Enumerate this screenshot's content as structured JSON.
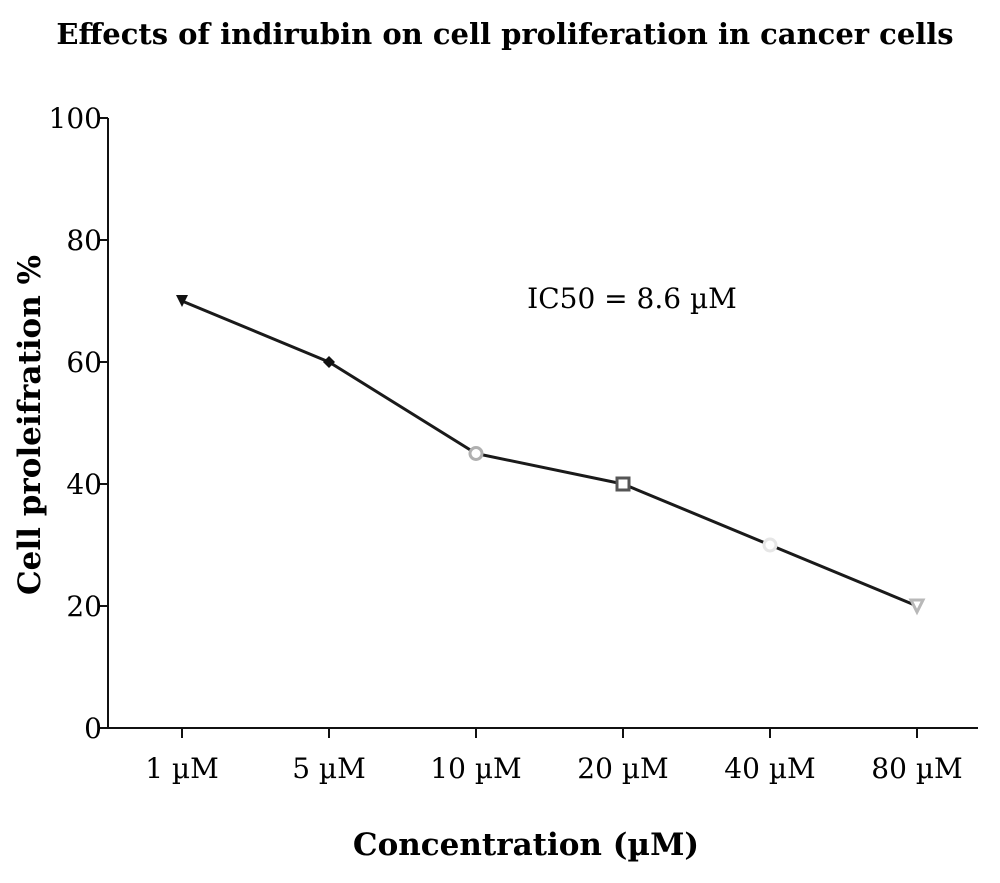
{
  "chart_data": {
    "type": "line",
    "title": "Effects of indirubin on cell proliferation in cancer cells",
    "xlabel": "Concentration (µM)",
    "ylabel": "Cell proleifration %",
    "categories": [
      "1 µM",
      "5 µM",
      "10 µM",
      "20 µM",
      "40 µM",
      "80 µM"
    ],
    "series": [
      {
        "values": [
          70,
          60,
          45,
          40,
          30,
          20
        ],
        "markers": [
          "triangle-down",
          "diamond",
          "circle",
          "square",
          "circle",
          "triangle-down-open"
        ],
        "marker_colors": [
          "#111111",
          "#111111",
          "#b0b0b0",
          "#555555",
          "#e6e6e6",
          "#b8b8b8"
        ]
      }
    ],
    "ylim": [
      0,
      100
    ],
    "yticks": [
      0,
      20,
      40,
      60,
      80,
      100
    ],
    "grid": false,
    "legend": "none",
    "annotations": [
      {
        "text": "IC50 = 8.6 µM"
      }
    ],
    "line_color": "#1a1a1a"
  }
}
